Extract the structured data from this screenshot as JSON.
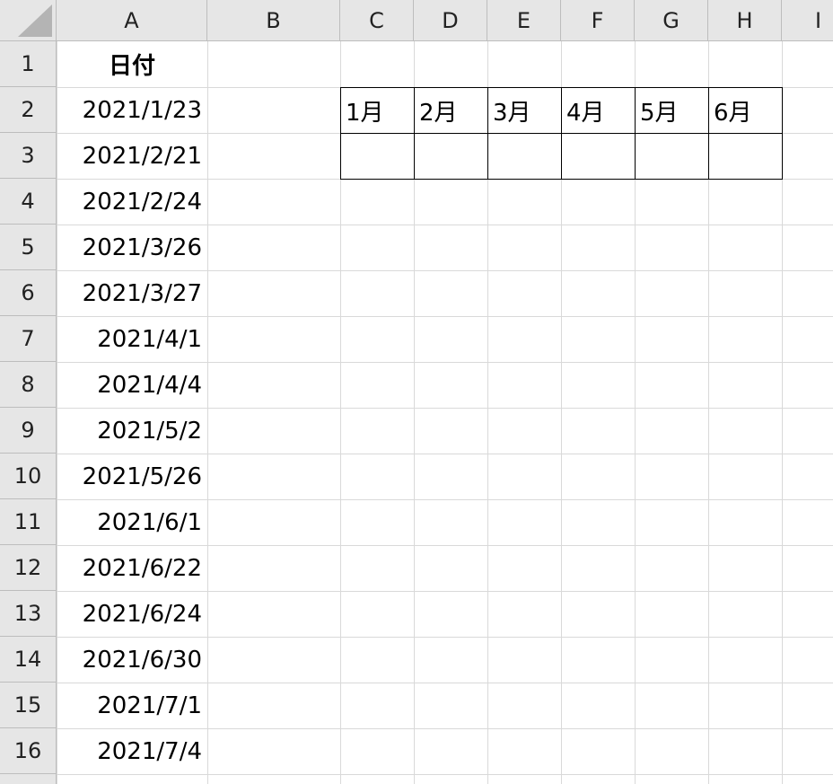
{
  "column_headers": [
    "A",
    "B",
    "C",
    "D",
    "E",
    "F",
    "G",
    "H",
    "I"
  ],
  "row_headers": [
    1,
    2,
    3,
    4,
    5,
    6,
    7,
    8,
    9,
    10,
    11,
    12,
    13,
    14,
    15,
    16
  ],
  "column_a": {
    "header": "日付",
    "dates": [
      "2021/1/23",
      "2021/2/21",
      "2021/2/24",
      "2021/3/26",
      "2021/3/27",
      "2021/4/1",
      "2021/4/4",
      "2021/5/2",
      "2021/5/26",
      "2021/6/1",
      "2021/6/22",
      "2021/6/24",
      "2021/6/30",
      "2021/7/1",
      "2021/7/4"
    ]
  },
  "month_table": {
    "months": [
      "1月",
      "2月",
      "3月",
      "4月",
      "5月",
      "6月"
    ]
  }
}
